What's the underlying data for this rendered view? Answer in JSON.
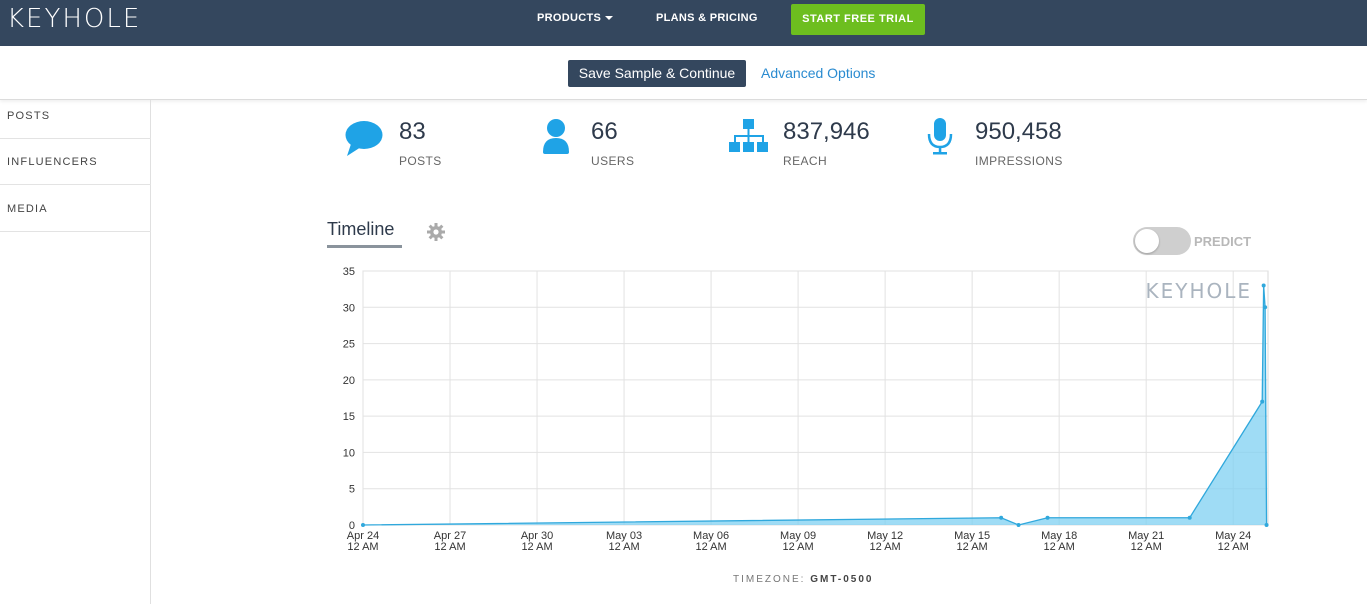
{
  "brand": {
    "logo_text": "KEYHOLE"
  },
  "nav": {
    "products": "PRODUCTS",
    "plans": "PLANS & PRICING",
    "trial": "START FREE TRIAL"
  },
  "actions": {
    "save": "Save Sample & Continue",
    "advanced": "Advanced Options"
  },
  "sidebar": {
    "items": [
      {
        "label": "POSTS"
      },
      {
        "label": "INFLUENCERS"
      },
      {
        "label": "MEDIA"
      }
    ]
  },
  "stats": [
    {
      "value": "83",
      "label": "POSTS",
      "icon": "chat-bubble-icon"
    },
    {
      "value": "66",
      "label": "USERS",
      "icon": "user-icon"
    },
    {
      "value": "837,946",
      "label": "REACH",
      "icon": "network-icon"
    },
    {
      "value": "950,458",
      "label": "IMPRESSIONS",
      "icon": "microphone-icon"
    }
  ],
  "timeline": {
    "tab_label": "Timeline",
    "predict_label": "PREDICT",
    "predict_on": false,
    "watermark": "KEYHOLE",
    "timezone_label": "TIMEZONE:",
    "timezone_value": "GMT-0500"
  },
  "colors": {
    "nav_bg": "#34475e",
    "accent_green": "#6dbe1f",
    "icon_blue": "#1fa3e6",
    "link_blue": "#2a8bd0",
    "series_line": "#30a8dc",
    "series_fill": "#7fd0f2"
  },
  "chart_data": {
    "type": "area",
    "ylim": [
      0,
      35
    ],
    "yticks": [
      "0",
      "5",
      "10",
      "15",
      "20",
      "25",
      "30",
      "35"
    ],
    "xlim": [
      0,
      31.2
    ],
    "xticks": [
      {
        "d": 0,
        "line1": "Apr 24",
        "line2": "12 AM"
      },
      {
        "d": 3,
        "line1": "Apr 27",
        "line2": "12 AM"
      },
      {
        "d": 6,
        "line1": "Apr 30",
        "line2": "12 AM"
      },
      {
        "d": 9,
        "line1": "May 03",
        "line2": "12 AM"
      },
      {
        "d": 12,
        "line1": "May 06",
        "line2": "12 AM"
      },
      {
        "d": 15,
        "line1": "May 09",
        "line2": "12 AM"
      },
      {
        "d": 18,
        "line1": "May 12",
        "line2": "12 AM"
      },
      {
        "d": 21,
        "line1": "May 15",
        "line2": "12 AM"
      },
      {
        "d": 24,
        "line1": "May 18",
        "line2": "12 AM"
      },
      {
        "d": 27,
        "line1": "May 21",
        "line2": "12 AM"
      },
      {
        "d": 30,
        "line1": "May 24",
        "line2": "12 AM"
      }
    ],
    "series": [
      {
        "points": [
          [
            0,
            0
          ],
          [
            22.0,
            1
          ],
          [
            22.6,
            0
          ],
          [
            23.6,
            1
          ],
          [
            28.5,
            1
          ],
          [
            31.0,
            17
          ],
          [
            31.05,
            33
          ],
          [
            31.1,
            30
          ],
          [
            31.15,
            0
          ]
        ]
      }
    ]
  }
}
